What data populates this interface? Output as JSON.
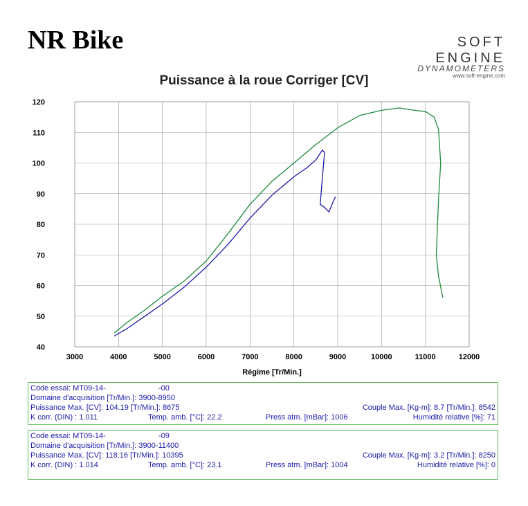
{
  "brand": "NR Bike",
  "logo": {
    "main": "SOFT ENGINE",
    "sub": "DYNAMOMETERS",
    "url": "www.soft-engine.com"
  },
  "chart_data": {
    "type": "line",
    "title": "Puissance à la roue Corriger [CV]",
    "xlabel": "Régime [Tr/Min.]",
    "ylabel": "",
    "xlim": [
      3000,
      12000
    ],
    "ylim": [
      40,
      120
    ],
    "xticks": [
      3000,
      4000,
      5000,
      6000,
      7000,
      8000,
      9000,
      10000,
      11000,
      12000
    ],
    "yticks": [
      40,
      50,
      60,
      70,
      80,
      90,
      100,
      110,
      120
    ],
    "grid": true,
    "series": [
      {
        "name": "MT09-14- -00",
        "color": "#1a1aa8",
        "points": [
          [
            3900,
            43.5
          ],
          [
            4200,
            46
          ],
          [
            4600,
            50
          ],
          [
            5000,
            54
          ],
          [
            5500,
            59.5
          ],
          [
            6000,
            66
          ],
          [
            6500,
            73.5
          ],
          [
            7000,
            82
          ],
          [
            7500,
            89.5
          ],
          [
            8000,
            95.5
          ],
          [
            8300,
            98.5
          ],
          [
            8500,
            101
          ],
          [
            8650,
            104.2
          ],
          [
            8700,
            103.5
          ],
          [
            8650,
            95
          ],
          [
            8600,
            86.5
          ],
          [
            8700,
            85.5
          ],
          [
            8800,
            84
          ],
          [
            8900,
            87.5
          ],
          [
            8950,
            89
          ]
        ]
      },
      {
        "name": "MT09-14- -09",
        "color": "#1e8a3a",
        "points": [
          [
            3900,
            44.5
          ],
          [
            4200,
            48
          ],
          [
            4600,
            52
          ],
          [
            5000,
            56.5
          ],
          [
            5500,
            61.5
          ],
          [
            6000,
            68
          ],
          [
            6500,
            77
          ],
          [
            7000,
            86.5
          ],
          [
            7500,
            94
          ],
          [
            8000,
            100
          ],
          [
            8500,
            106
          ],
          [
            9000,
            111.5
          ],
          [
            9500,
            115.5
          ],
          [
            10000,
            117.2
          ],
          [
            10400,
            118
          ],
          [
            10700,
            117.3
          ],
          [
            11000,
            116.8
          ],
          [
            11200,
            115
          ],
          [
            11300,
            111
          ],
          [
            11350,
            100
          ],
          [
            11300,
            88
          ],
          [
            11250,
            70
          ],
          [
            11300,
            63
          ],
          [
            11400,
            56
          ]
        ]
      }
    ]
  },
  "runs": [
    {
      "code_label": "Code essai: MT09-14-",
      "code_suffix": "-00",
      "domain": "Domaine d'acquisition [Tr/Min.]: 3900-8950",
      "power": "Puissance Max. [CV]: 104.19  [Tr/Min.]: 8675",
      "torque": "Couple Max. [Kg·m]: 8.7  [Tr/Min.]: 8542",
      "kcorr": "K corr. (DIN) : 1.011",
      "temp": "Temp. amb. [°C]: 22.2",
      "press": "Press atm. [mBar]: 1006",
      "humidity": "Humidité relative [%]: 71"
    },
    {
      "code_label": "Code essai: MT09-14-",
      "code_suffix": "-09",
      "domain": "Domaine d'acquisition [Tr/Min.]: 3900-11400",
      "power": "Puissance Max. [CV]: 118.16  [Tr/Min.]: 10395",
      "torque": "Couple Max. [Kg·m]: 3.2  [Tr/Min.]: 8250",
      "kcorr": "K corr. (DIN) : 1.014",
      "temp": "Temp. amb. [°C]: 23.1",
      "press": "Press atm. [mBar]: 1004",
      "humidity": "Humidité relative [%]: 0"
    }
  ]
}
